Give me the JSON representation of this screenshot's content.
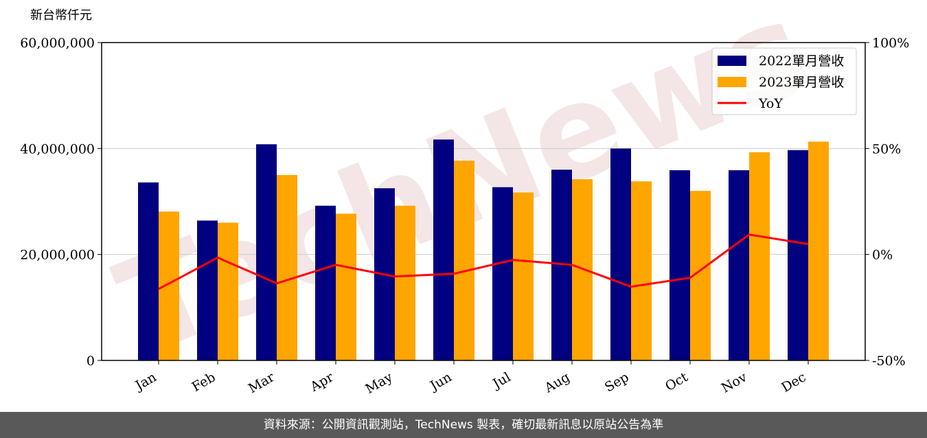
{
  "chart_data": {
    "type": "bar",
    "y_label": "新台幣仟元",
    "categories": [
      "Jan",
      "Feb",
      "Mar",
      "Apr",
      "May",
      "Jun",
      "Jul",
      "Aug",
      "Sep",
      "Oct",
      "Nov",
      "Dec"
    ],
    "series": [
      {
        "name": "2022單月營收",
        "color": "#000080",
        "values": [
          33600000,
          26400000,
          40800000,
          29200000,
          32500000,
          41700000,
          32700000,
          36000000,
          40000000,
          35900000,
          35900000,
          39700000
        ]
      },
      {
        "name": "2023單月營收",
        "color": "#ffa500",
        "values": [
          28100000,
          26000000,
          35000000,
          27700000,
          29200000,
          37700000,
          31700000,
          34200000,
          33800000,
          32000000,
          39300000,
          41300000
        ]
      },
      {
        "name": "YoY",
        "color": "#ff0000",
        "type": "line",
        "axis": "y2",
        "values": [
          -16.3,
          -1.5,
          -13.6,
          -4.9,
          -10.4,
          -9.1,
          -2.6,
          -4.9,
          -15.2,
          -11.0,
          9.4,
          4.9
        ]
      }
    ],
    "ylim": [
      0,
      60000000
    ],
    "yticks": [
      0,
      {
        "value": 20000000,
        "label": "20,000,000"
      },
      {
        "value": 40000000,
        "label": "40,000,000"
      },
      {
        "value": 60000000,
        "label": "60,000,000"
      }
    ],
    "y2lim": [
      -50,
      100
    ],
    "y2ticks": [
      {
        "value": -50,
        "label": "-50%"
      },
      {
        "value": 0,
        "label": "0%"
      },
      {
        "value": 50,
        "label": "50%"
      },
      {
        "value": 100,
        "label": "100%"
      }
    ],
    "grid": true,
    "legend": "upper right"
  },
  "watermark": "TechNews",
  "footer": "資料來源：公開資訊觀測站，TechNews 製表，確切最新訊息以原站公告為準"
}
